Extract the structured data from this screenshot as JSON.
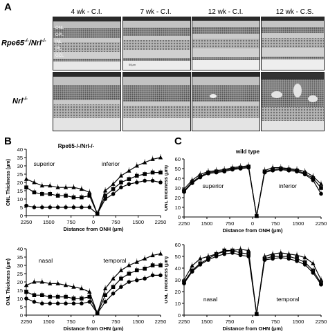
{
  "panels": {
    "A": "A",
    "B": "B",
    "C": "C"
  },
  "panel_a": {
    "columns": [
      "4 wk  - C.I.",
      "7 wk  - C.I.",
      "12 wk  - C.I.",
      "12 wk  - C.S."
    ],
    "rows": [
      {
        "label_main": "Rpe65",
        "label_sup1": "-/-",
        "label_sep": "/Nrl",
        "label_sup2": "-/-"
      },
      {
        "label_main": "Nrl",
        "label_sup1": "-/-"
      }
    ],
    "layer_labels": [
      "ONL",
      "OPL",
      "INL",
      "IPL",
      "GCL"
    ],
    "scalebar_text": "50μm"
  },
  "chart_data": [
    {
      "panel": "B",
      "type": "line",
      "title": "Rpe65-/-/Nrl-/-",
      "annotations": [
        "superior",
        "inferior"
      ],
      "xlabel": "Distance from ONH (μm)",
      "ylabel": "ONL Thickness (μm)",
      "x_ticks": [
        "2250",
        "1500",
        "750",
        "0",
        "750",
        "1500",
        "2250"
      ],
      "y_ticks": [
        "0",
        "5",
        "10",
        "15",
        "20",
        "25",
        "30",
        "35",
        "40"
      ],
      "ylim": [
        0,
        40
      ],
      "series": [
        {
          "marker": "triangle",
          "values": [
            22,
            20,
            18,
            18,
            17,
            17,
            17,
            16,
            14,
            1,
            15,
            19,
            24,
            27,
            30,
            32,
            34,
            35
          ]
        },
        {
          "marker": "square",
          "values": [
            17,
            14,
            13,
            13,
            12,
            12,
            11,
            11,
            12,
            1,
            12,
            16,
            20,
            22,
            24,
            25,
            26,
            26
          ]
        },
        {
          "marker": "circle",
          "values": [
            6,
            5,
            5,
            5,
            5,
            5,
            5,
            5,
            5,
            1,
            10,
            13,
            17,
            19,
            20,
            21,
            21,
            20
          ]
        }
      ]
    },
    {
      "panel": "C",
      "type": "line",
      "title": "wild type",
      "annotations": [
        "superior",
        "inferior"
      ],
      "xlabel": "Distance from ONH (μm)",
      "ylabel": "ONL thickness (μm)",
      "x_ticks": [
        "2250",
        "1500",
        "750",
        "0",
        "750",
        "1500",
        "2250"
      ],
      "y_ticks": [
        "0",
        "10",
        "20",
        "30",
        "40",
        "50",
        "60"
      ],
      "ylim": [
        0,
        60
      ],
      "series": [
        {
          "marker": "triangle",
          "values": [
            29,
            38,
            44,
            47,
            48,
            49,
            51,
            52,
            53,
            1,
            48,
            51,
            51,
            50,
            49,
            47,
            42,
            34
          ]
        },
        {
          "marker": "square",
          "values": [
            27,
            36,
            42,
            46,
            47,
            48,
            50,
            51,
            52,
            1,
            47,
            49,
            50,
            49,
            48,
            45,
            40,
            30
          ]
        },
        {
          "marker": "circle",
          "values": [
            26,
            35,
            41,
            45,
            46,
            47,
            49,
            50,
            51,
            1,
            46,
            48,
            49,
            48,
            47,
            44,
            38,
            24
          ]
        }
      ]
    },
    {
      "panel": "B2",
      "type": "line",
      "annotations": [
        "nasal",
        "temporal"
      ],
      "xlabel": "Distance from OHN (μm)",
      "ylabel": "ONL Thickness (μm)",
      "x_ticks": [
        "2250",
        "1500",
        "750",
        "0",
        "750",
        "1500",
        "2250"
      ],
      "y_ticks": [
        "0",
        "5",
        "10",
        "15",
        "20",
        "25",
        "30",
        "35",
        "40"
      ],
      "ylim": [
        0,
        40
      ],
      "series": [
        {
          "marker": "triangle",
          "values": [
            18,
            20,
            20,
            19,
            19,
            18,
            17,
            16,
            14,
            1,
            16,
            22,
            27,
            30,
            32,
            34,
            36,
            37
          ]
        },
        {
          "marker": "square",
          "values": [
            14,
            12,
            12,
            11,
            11,
            11,
            10,
            10,
            11,
            1,
            12,
            17,
            22,
            25,
            27,
            28,
            30,
            30
          ]
        },
        {
          "marker": "circle",
          "values": [
            10,
            8,
            7,
            7,
            7,
            7,
            7,
            7,
            8,
            1,
            8,
            13,
            17,
            20,
            21,
            22,
            24,
            24
          ]
        }
      ]
    },
    {
      "panel": "C2",
      "type": "line",
      "annotations": [
        "nasal",
        "temporal"
      ],
      "xlabel": "Distance from OHN (μm)",
      "ylabel": "ONL Thickness (μm)",
      "x_ticks": [
        "2250",
        "1500",
        "750",
        "0",
        "750",
        "1500",
        "2250"
      ],
      "y_ticks": [
        "0",
        "10",
        "20",
        "30",
        "40",
        "50",
        "60"
      ],
      "ylim": [
        0,
        60
      ],
      "series": [
        {
          "marker": "triangle",
          "values": [
            30,
            42,
            48,
            50,
            52,
            54,
            55,
            56,
            55,
            1,
            50,
            52,
            53,
            52,
            51,
            49,
            44,
            30
          ]
        },
        {
          "marker": "square",
          "values": [
            28,
            38,
            44,
            48,
            52,
            55,
            55,
            53,
            52,
            1,
            48,
            50,
            50,
            50,
            48,
            45,
            38,
            27
          ]
        },
        {
          "marker": "circle",
          "values": [
            27,
            37,
            43,
            47,
            50,
            52,
            53,
            51,
            50,
            1,
            47,
            48,
            49,
            48,
            46,
            43,
            36,
            26
          ]
        }
      ]
    }
  ]
}
